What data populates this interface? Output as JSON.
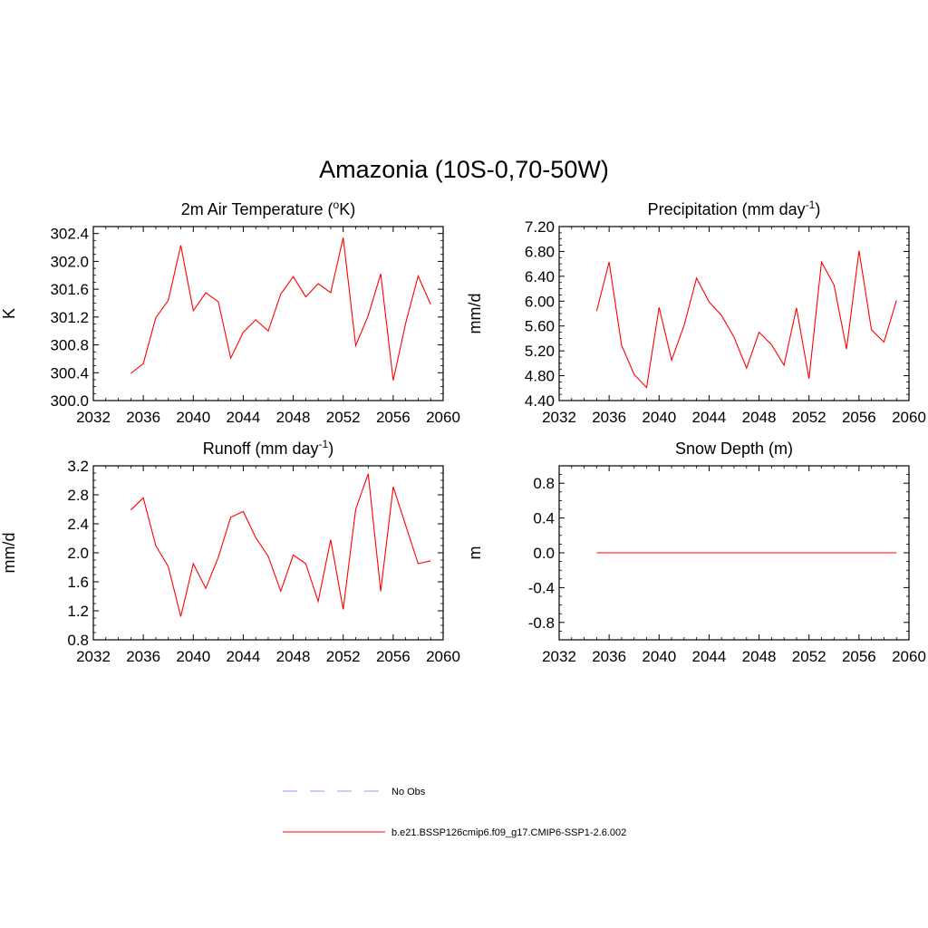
{
  "figure": {
    "title": "Amazonia (10S-0,70-50W)"
  },
  "colors": {
    "model": "#ff0000",
    "obs": "#9a9aff",
    "axis": "#000000"
  },
  "legend": [
    {
      "label": "No Obs",
      "style": "dashed",
      "color": "#9a9aff"
    },
    {
      "label": "b.e21.BSSP126cmip6.f09_g17.CMIP6-SSP1-2.6.002",
      "style": "solid",
      "color": "#ff0000"
    }
  ],
  "chart_data": [
    {
      "type": "line",
      "title": "2m Air Temperature (",
      "title_sup": "o",
      "title_end": "K)",
      "ylabel": "K",
      "xlim": [
        2032,
        2060
      ],
      "ylim": [
        300.0,
        302.5
      ],
      "xticks": [
        2032,
        2036,
        2040,
        2044,
        2048,
        2052,
        2056,
        2060
      ],
      "xtick_labels": [
        "2032",
        "2036",
        "2040",
        "2044",
        "2048",
        "2052",
        "2056",
        "2060"
      ],
      "yticks": [
        300.0,
        300.4,
        300.8,
        301.2,
        301.6,
        302.0,
        302.4
      ],
      "ytick_labels": [
        "300.0",
        "300.4",
        "300.8",
        "301.2",
        "301.6",
        "302.0",
        "302.4"
      ],
      "yminor_step": 0.1,
      "series": [
        {
          "name": "b.e21.BSSP126cmip6.f09_g17.CMIP6-SSP1-2.6.002",
          "x": [
            2035,
            2036,
            2037,
            2038,
            2039,
            2040,
            2041,
            2042,
            2043,
            2044,
            2045,
            2046,
            2047,
            2048,
            2049,
            2050,
            2051,
            2052,
            2053,
            2054,
            2055,
            2056,
            2057,
            2058,
            2059
          ],
          "values": [
            300.39,
            300.53,
            301.19,
            301.44,
            302.23,
            301.29,
            301.55,
            301.42,
            300.61,
            300.98,
            301.16,
            301.0,
            301.53,
            301.78,
            301.49,
            301.68,
            301.55,
            302.34,
            300.79,
            301.22,
            301.82,
            300.29,
            301.11,
            301.79,
            301.38
          ]
        }
      ]
    },
    {
      "type": "line",
      "title": "Precipitation (mm day",
      "title_sup": "-1",
      "title_end": ")",
      "ylabel": "mm/d",
      "xlim": [
        2032,
        2060
      ],
      "ylim": [
        4.4,
        7.2
      ],
      "xticks": [
        2032,
        2036,
        2040,
        2044,
        2048,
        2052,
        2056,
        2060
      ],
      "xtick_labels": [
        "2032",
        "2036",
        "2040",
        "2044",
        "2048",
        "2052",
        "2056",
        "2060"
      ],
      "yticks": [
        4.4,
        4.8,
        5.2,
        5.6,
        6.0,
        6.4,
        6.8,
        7.2
      ],
      "ytick_labels": [
        "4.40",
        "4.80",
        "5.20",
        "5.60",
        "6.00",
        "6.40",
        "6.80",
        "7.20"
      ],
      "yminor_step": 0.1,
      "series": [
        {
          "name": "b.e21.BSSP126cmip6.f09_g17.CMIP6-SSP1-2.6.002",
          "x": [
            2035,
            2036,
            2037,
            2038,
            2039,
            2040,
            2041,
            2042,
            2043,
            2044,
            2045,
            2046,
            2047,
            2048,
            2049,
            2050,
            2051,
            2052,
            2053,
            2054,
            2055,
            2056,
            2057,
            2058,
            2059
          ],
          "values": [
            5.84,
            6.63,
            5.29,
            4.82,
            4.61,
            5.9,
            5.05,
            5.61,
            6.37,
            5.99,
            5.77,
            5.42,
            4.92,
            5.5,
            5.3,
            4.97,
            5.89,
            4.75,
            6.63,
            6.26,
            5.23,
            6.81,
            5.54,
            5.34,
            6.01
          ]
        }
      ]
    },
    {
      "type": "line",
      "title": "Runoff (mm day",
      "title_sup": "-1",
      "title_end": ")",
      "ylabel": "mm/d",
      "xlim": [
        2032,
        2060
      ],
      "ylim": [
        0.8,
        3.2
      ],
      "xticks": [
        2032,
        2036,
        2040,
        2044,
        2048,
        2052,
        2056,
        2060
      ],
      "xtick_labels": [
        "2032",
        "2036",
        "2040",
        "2044",
        "2048",
        "2052",
        "2056",
        "2060"
      ],
      "yticks": [
        0.8,
        1.2,
        1.6,
        2.0,
        2.4,
        2.8,
        3.2
      ],
      "ytick_labels": [
        "0.8",
        "1.2",
        "1.6",
        "2.0",
        "2.4",
        "2.8",
        "3.2"
      ],
      "yminor_step": 0.1,
      "series": [
        {
          "name": "b.e21.BSSP126cmip6.f09_g17.CMIP6-SSP1-2.6.002",
          "x": [
            2035,
            2036,
            2037,
            2038,
            2039,
            2040,
            2041,
            2042,
            2043,
            2044,
            2045,
            2046,
            2047,
            2048,
            2049,
            2050,
            2051,
            2052,
            2053,
            2054,
            2055,
            2056,
            2057,
            2058,
            2059
          ],
          "values": [
            2.59,
            2.76,
            2.1,
            1.81,
            1.12,
            1.85,
            1.51,
            1.94,
            2.49,
            2.57,
            2.21,
            1.95,
            1.47,
            1.97,
            1.85,
            1.33,
            2.18,
            1.22,
            2.6,
            3.09,
            1.47,
            2.91,
            2.38,
            1.85,
            1.89
          ]
        }
      ]
    },
    {
      "type": "line",
      "title": "Snow Depth (m)",
      "title_sup": "",
      "title_end": "",
      "ylabel": "m",
      "xlim": [
        2032,
        2060
      ],
      "ylim": [
        -1.0,
        1.0
      ],
      "xticks": [
        2032,
        2036,
        2040,
        2044,
        2048,
        2052,
        2056,
        2060
      ],
      "xtick_labels": [
        "2032",
        "2036",
        "2040",
        "2044",
        "2048",
        "2052",
        "2056",
        "2060"
      ],
      "yticks": [
        -0.8,
        -0.4,
        0.0,
        0.4,
        0.8
      ],
      "ytick_labels": [
        "-0.8",
        "-0.4",
        "0.0",
        "0.4",
        "0.8"
      ],
      "yminor_step": 0.1,
      "series": [
        {
          "name": "b.e21.BSSP126cmip6.f09_g17.CMIP6-SSP1-2.6.002",
          "x": [
            2035,
            2036,
            2037,
            2038,
            2039,
            2040,
            2041,
            2042,
            2043,
            2044,
            2045,
            2046,
            2047,
            2048,
            2049,
            2050,
            2051,
            2052,
            2053,
            2054,
            2055,
            2056,
            2057,
            2058,
            2059
          ],
          "values": [
            0.0,
            0.0,
            0.0,
            0.0,
            0.0,
            0.0,
            0.0,
            0.0,
            0.0,
            0.0,
            0.0,
            0.0,
            0.0,
            0.0,
            0.0,
            0.0,
            0.0,
            0.0,
            0.0,
            0.0,
            0.0,
            0.0,
            0.0,
            0.0,
            0.0
          ]
        }
      ]
    }
  ]
}
